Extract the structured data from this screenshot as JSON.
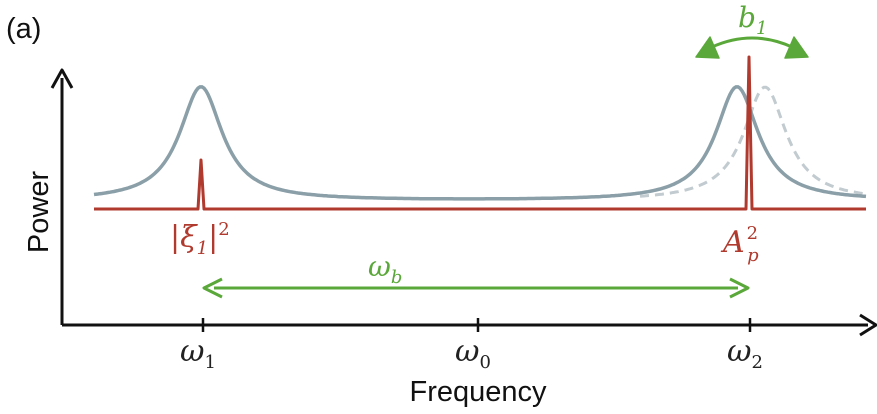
{
  "panel_label": "(a)",
  "axes": {
    "x_title": "Frequency",
    "y_title": "Power"
  },
  "ticks": [
    {
      "base": "ω",
      "sub": "1"
    },
    {
      "base": "ω",
      "sub": "0"
    },
    {
      "base": "ω",
      "sub": "2"
    }
  ],
  "labels": {
    "xi": {
      "pre": "|ξ",
      "sub": "1",
      "post": "|",
      "sup": "2"
    },
    "pump": {
      "base": "A",
      "sub": "p",
      "sup": "2"
    },
    "separation": {
      "base": "ω",
      "sub": "b"
    },
    "shift": {
      "base": "b",
      "sub": "1"
    }
  },
  "colors": {
    "axis": "#111111",
    "resonance_curve": "#8a9fa8",
    "shifted_curve": "#c2cbd0",
    "signal": "#b03a2e",
    "annotation": "#5aa83a"
  }
}
